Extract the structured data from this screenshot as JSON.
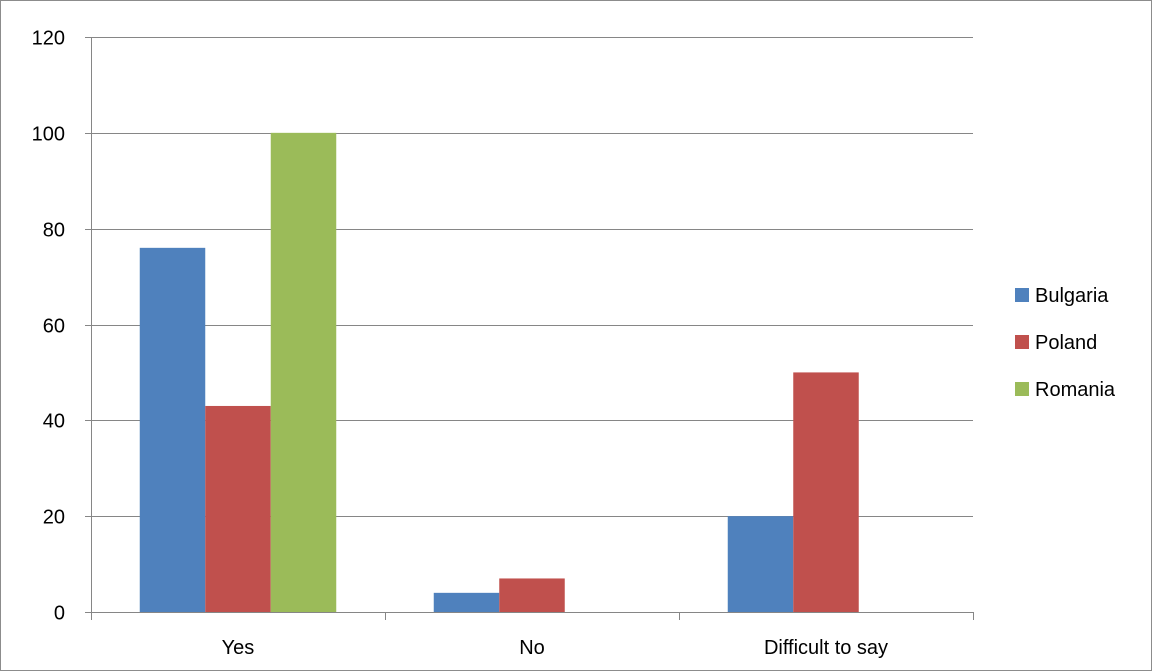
{
  "chart_data": {
    "type": "bar",
    "title": "",
    "xlabel": "",
    "ylabel": "",
    "categories": [
      "Yes",
      "No",
      "Difficult to say"
    ],
    "series": [
      {
        "name": "Bulgaria",
        "values": [
          76,
          4,
          20
        ],
        "color": "#4f81bd"
      },
      {
        "name": "Poland",
        "values": [
          43,
          7,
          50
        ],
        "color": "#c0504d"
      },
      {
        "name": "Romania",
        "values": [
          100,
          0,
          0
        ],
        "color": "#9bbb59"
      }
    ],
    "ylim": [
      0,
      120
    ],
    "yticks": [
      0,
      20,
      40,
      60,
      80,
      100,
      120
    ],
    "grid": true,
    "legend_position": "right"
  }
}
